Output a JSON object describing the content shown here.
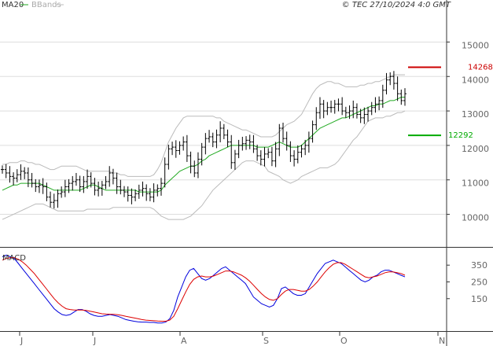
{
  "header": {
    "ma_label": "MA20",
    "bbands_label": "BBands",
    "copyright": "© TEC 27/10/2024 4:0 GMT"
  },
  "colors": {
    "ma": "#22aa22",
    "bands": "#bbbbbb",
    "candle": "#000000",
    "resistance": "#cc0000",
    "support": "#00aa00",
    "macd": "#0000dd",
    "signal": "#dd0000",
    "grid": "#dddddd"
  },
  "chart_data": [
    {
      "type": "candlestick",
      "title": "",
      "x_ticks": [
        "J",
        "J",
        "A",
        "S",
        "O",
        "N"
      ],
      "y_ticks": [
        "15000",
        "14000",
        "13000",
        "12000",
        "11000",
        "10000"
      ],
      "ylim": [
        9100,
        15900
      ],
      "levels": [
        {
          "label": "14268",
          "value": 14268,
          "role": "resistance"
        },
        {
          "label": "12292",
          "value": 12292,
          "role": "support"
        }
      ],
      "close": [
        11300,
        11200,
        11100,
        11050,
        11150,
        11250,
        11200,
        11000,
        10900,
        10800,
        10850,
        10800,
        10500,
        10350,
        10400,
        10600,
        10650,
        10800,
        10900,
        10950,
        11000,
        10800,
        10950,
        11100,
        10900,
        10700,
        10750,
        10850,
        10950,
        11200,
        11050,
        10800,
        10700,
        10650,
        10550,
        10500,
        10600,
        10700,
        10750,
        10600,
        10500,
        10700,
        10750,
        10900,
        11450,
        11900,
        11950,
        11850,
        12000,
        12100,
        11700,
        11400,
        11200,
        11600,
        11950,
        12200,
        12250,
        12100,
        12300,
        12500,
        12300,
        12100,
        11500,
        11750,
        12000,
        12050,
        12150,
        12100,
        11900,
        11700,
        11600,
        11750,
        11800,
        11550,
        11900,
        12500,
        12200,
        12000,
        11700,
        11600,
        11800,
        11900,
        12000,
        12200,
        12600,
        12950,
        13200,
        13000,
        13100,
        13100,
        13200,
        13200,
        13000,
        12950,
        13000,
        13100,
        12900,
        12800,
        12900,
        13000,
        13100,
        13200,
        13300,
        13600,
        13900,
        14000,
        13800,
        13500,
        13300,
        13500
      ],
      "ma20": [
        10700,
        10750,
        10800,
        10850,
        10850,
        10900,
        10900,
        10900,
        10900,
        10900,
        10900,
        10850,
        10800,
        10750,
        10700,
        10700,
        10700,
        10700,
        10700,
        10700,
        10700,
        10700,
        10750,
        10800,
        10850,
        10850,
        10800,
        10750,
        10700,
        10700,
        10700,
        10700,
        10700,
        10700,
        10700,
        10700,
        10700,
        10650,
        10650,
        10650,
        10650,
        10650,
        10650,
        10700,
        10850,
        10950,
        11050,
        11150,
        11250,
        11300,
        11350,
        11400,
        11400,
        11450,
        11550,
        11600,
        11700,
        11750,
        11800,
        11850,
        11900,
        11950,
        12000,
        12000,
        12000,
        12000,
        12000,
        12000,
        12000,
        11950,
        11950,
        11950,
        11950,
        12000,
        12050,
        12100,
        12050,
        12000,
        11950,
        11950,
        11950,
        12000,
        12100,
        12200,
        12300,
        12400,
        12500,
        12550,
        12600,
        12650,
        12700,
        12750,
        12800,
        12800,
        12850,
        12900,
        12950,
        13000,
        13050,
        13100,
        13150,
        13150,
        13200,
        13200,
        13250,
        13300,
        13300,
        13350,
        13400,
        13400
      ],
      "bb_upper": [
        11450,
        11450,
        11500,
        11500,
        11500,
        11550,
        11550,
        11500,
        11500,
        11450,
        11450,
        11400,
        11350,
        11300,
        11300,
        11350,
        11400,
        11400,
        11400,
        11400,
        11400,
        11350,
        11300,
        11250,
        11250,
        11250,
        11250,
        11250,
        11250,
        11250,
        11200,
        11200,
        11150,
        11150,
        11100,
        11100,
        11100,
        11100,
        11100,
        11100,
        11100,
        11150,
        11300,
        11500,
        11800,
        12100,
        12300,
        12500,
        12650,
        12800,
        12850,
        12850,
        12850,
        12850,
        12850,
        12850,
        12850,
        12850,
        12800,
        12800,
        12700,
        12650,
        12600,
        12550,
        12500,
        12450,
        12450,
        12400,
        12350,
        12300,
        12250,
        12250,
        12250,
        12250,
        12300,
        12400,
        12500,
        12600,
        12650,
        12700,
        12800,
        12900,
        13100,
        13300,
        13500,
        13650,
        13750,
        13800,
        13850,
        13850,
        13800,
        13800,
        13750,
        13700,
        13700,
        13700,
        13700,
        13750,
        13750,
        13800,
        13800,
        13850,
        13850,
        13900,
        13950,
        14000,
        14050,
        14050,
        14050,
        14050
      ],
      "bb_lower": [
        9850,
        9900,
        9950,
        10000,
        10050,
        10100,
        10150,
        10200,
        10250,
        10300,
        10300,
        10300,
        10250,
        10200,
        10150,
        10100,
        10100,
        10100,
        10100,
        10100,
        10100,
        10100,
        10100,
        10150,
        10150,
        10150,
        10150,
        10150,
        10150,
        10150,
        10200,
        10200,
        10200,
        10200,
        10200,
        10200,
        10200,
        10200,
        10200,
        10200,
        10200,
        10150,
        10050,
        9950,
        9900,
        9850,
        9850,
        9850,
        9850,
        9850,
        9900,
        9950,
        10050,
        10150,
        10250,
        10400,
        10550,
        10700,
        10800,
        10900,
        11000,
        11100,
        11200,
        11300,
        11400,
        11500,
        11550,
        11550,
        11550,
        11500,
        11450,
        11400,
        11250,
        11200,
        11150,
        11100,
        11000,
        10950,
        10900,
        10950,
        11000,
        11100,
        11150,
        11200,
        11250,
        11300,
        11350,
        11350,
        11350,
        11400,
        11450,
        11550,
        11700,
        11850,
        12000,
        12150,
        12250,
        12400,
        12550,
        12700,
        12750,
        12800,
        12800,
        12800,
        12850,
        12850,
        12900,
        12950,
        12950,
        13000
      ]
    },
    {
      "type": "line",
      "title": "MACD",
      "y_ticks": [
        "350",
        "250",
        "150"
      ],
      "ylim": [
        -20,
        440
      ],
      "series": [
        {
          "name": "",
          "color": "#0000dd",
          "values": [
            400,
            410,
            400,
            390,
            360,
            330,
            300,
            270,
            240,
            210,
            180,
            150,
            120,
            90,
            70,
            55,
            50,
            55,
            70,
            85,
            85,
            75,
            60,
            50,
            45,
            45,
            50,
            55,
            50,
            45,
            35,
            25,
            20,
            15,
            12,
            10,
            10,
            8,
            8,
            5,
            5,
            10,
            30,
            80,
            160,
            220,
            280,
            320,
            330,
            300,
            270,
            260,
            270,
            290,
            310,
            330,
            340,
            320,
            300,
            280,
            260,
            240,
            200,
            160,
            140,
            120,
            110,
            100,
            110,
            150,
            210,
            220,
            200,
            180,
            170,
            170,
            180,
            220,
            260,
            300,
            330,
            360,
            370,
            380,
            370,
            360,
            340,
            320,
            300,
            280,
            260,
            250,
            260,
            280,
            290,
            310,
            320,
            320,
            310,
            300,
            290,
            280
          ],
          "x_offset": 0
        },
        {
          "name": "",
          "color": "#dd0000",
          "values": [
            380,
            390,
            395,
            395,
            385,
            370,
            350,
            325,
            300,
            270,
            240,
            210,
            180,
            150,
            125,
            105,
            90,
            85,
            82,
            82,
            82,
            80,
            75,
            70,
            65,
            60,
            58,
            57,
            56,
            54,
            50,
            45,
            40,
            35,
            30,
            25,
            22,
            20,
            18,
            16,
            15,
            15,
            22,
            45,
            90,
            140,
            190,
            235,
            265,
            280,
            285,
            280,
            280,
            285,
            295,
            305,
            315,
            315,
            310,
            300,
            290,
            275,
            255,
            230,
            205,
            180,
            160,
            145,
            140,
            150,
            175,
            195,
            205,
            205,
            200,
            195,
            195,
            205,
            225,
            250,
            280,
            310,
            335,
            355,
            365,
            365,
            355,
            340,
            325,
            310,
            295,
            280,
            275,
            280,
            285,
            295,
            305,
            310,
            310,
            305,
            300,
            290
          ],
          "x_offset": 0
        }
      ]
    }
  ]
}
